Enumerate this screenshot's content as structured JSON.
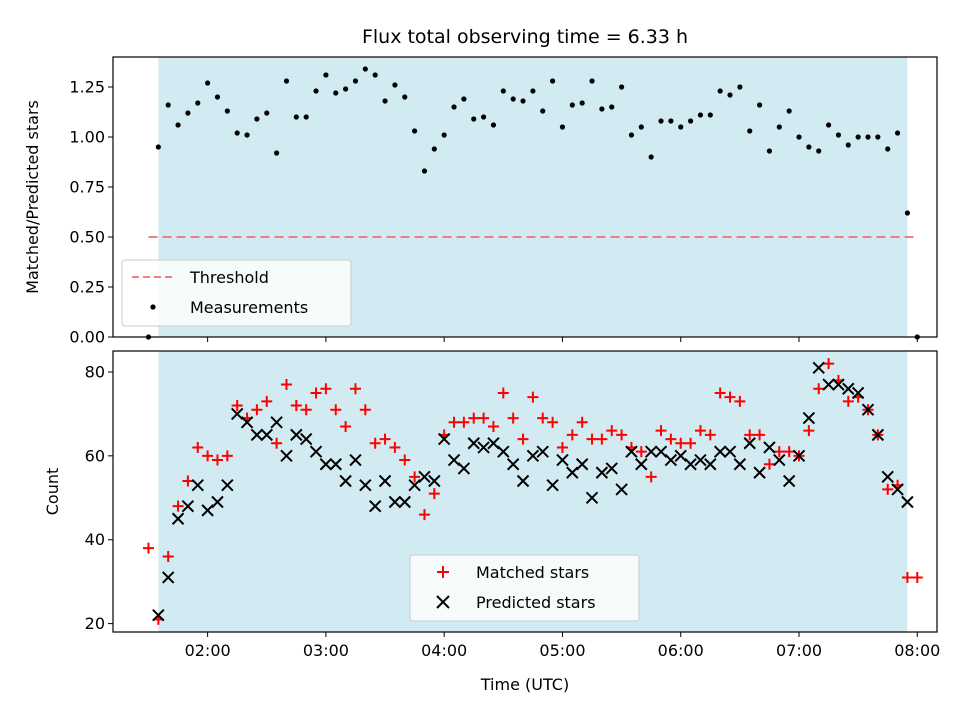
{
  "colors": {
    "shade": "#add8e6",
    "threshold": "#f08080",
    "measurement": "#000000",
    "matched": "#ff0000",
    "predicted": "#000000"
  },
  "chart_data": [
    {
      "type": "scatter",
      "title": "Flux total observing time = 6.33 h",
      "xlabel": "",
      "ylabel": "Matched/Predicted stars",
      "xlim": [
        "01:12",
        "08:10"
      ],
      "ylim": [
        0,
        1.4
      ],
      "yticks": [
        "0.00",
        "0.25",
        "0.50",
        "0.75",
        "1.00",
        "1.25"
      ],
      "shaded_span": [
        "01:35",
        "07:55"
      ],
      "legend": {
        "position": "lower-left",
        "entries": [
          "Threshold",
          "Measurements"
        ]
      },
      "threshold": {
        "name": "Threshold",
        "y": 0.5,
        "x_range": [
          "01:30",
          "08:00"
        ],
        "style": "dashed"
      },
      "series": [
        {
          "name": "Measurements",
          "x": [
            "01:30",
            "01:35",
            "01:40",
            "01:45",
            "01:50",
            "01:55",
            "02:00",
            "02:05",
            "02:10",
            "02:15",
            "02:20",
            "02:25",
            "02:30",
            "02:35",
            "02:40",
            "02:45",
            "02:50",
            "02:55",
            "03:00",
            "03:05",
            "03:10",
            "03:15",
            "03:20",
            "03:25",
            "03:30",
            "03:35",
            "03:40",
            "03:45",
            "03:50",
            "03:55",
            "04:00",
            "04:05",
            "04:10",
            "04:15",
            "04:20",
            "04:25",
            "04:30",
            "04:35",
            "04:40",
            "04:45",
            "04:50",
            "04:55",
            "05:00",
            "05:05",
            "05:10",
            "05:15",
            "05:20",
            "05:25",
            "05:30",
            "05:35",
            "05:40",
            "05:45",
            "05:50",
            "05:55",
            "06:00",
            "06:05",
            "06:10",
            "06:15",
            "06:20",
            "06:25",
            "06:30",
            "06:35",
            "06:40",
            "06:45",
            "06:50",
            "06:55",
            "07:00",
            "07:05",
            "07:10",
            "07:15",
            "07:20",
            "07:25",
            "07:30",
            "07:35",
            "07:40",
            "07:45",
            "07:50",
            "07:55",
            "08:00"
          ],
          "y": [
            0.0,
            0.95,
            1.16,
            1.06,
            1.12,
            1.17,
            1.27,
            1.2,
            1.13,
            1.02,
            1.01,
            1.09,
            1.12,
            0.92,
            1.28,
            1.1,
            1.1,
            1.23,
            1.31,
            1.22,
            1.24,
            1.28,
            1.34,
            1.31,
            1.18,
            1.26,
            1.2,
            1.03,
            0.83,
            0.94,
            1.01,
            1.15,
            1.19,
            1.09,
            1.1,
            1.06,
            1.23,
            1.19,
            1.18,
            1.23,
            1.13,
            1.28,
            1.05,
            1.16,
            1.17,
            1.28,
            1.14,
            1.15,
            1.25,
            1.01,
            1.05,
            0.9,
            1.08,
            1.08,
            1.05,
            1.08,
            1.11,
            1.11,
            1.23,
            1.21,
            1.25,
            1.03,
            1.16,
            0.93,
            1.05,
            1.13,
            1.0,
            0.95,
            0.93,
            1.06,
            1.01,
            0.96,
            1.0,
            1.0,
            1.0,
            0.94,
            1.02,
            0.62,
            0.0
          ]
        }
      ]
    },
    {
      "type": "scatter",
      "title": "",
      "xlabel": "Time (UTC)",
      "ylabel": "Count",
      "xlim": [
        "01:12",
        "08:10"
      ],
      "ylim": [
        18,
        85
      ],
      "xticks": [
        "02:00",
        "03:00",
        "04:00",
        "05:00",
        "06:00",
        "07:00",
        "08:00"
      ],
      "yticks": [
        "20",
        "40",
        "60",
        "80"
      ],
      "shaded_span": [
        "01:35",
        "07:55"
      ],
      "legend": {
        "position": "lower-center",
        "entries": [
          "Matched stars",
          "Predicted stars"
        ]
      },
      "series": [
        {
          "name": "Matched stars",
          "marker": "+",
          "x": [
            "01:30",
            "01:35",
            "01:40",
            "01:45",
            "01:50",
            "01:55",
            "02:00",
            "02:05",
            "02:10",
            "02:15",
            "02:20",
            "02:25",
            "02:30",
            "02:35",
            "02:40",
            "02:45",
            "02:50",
            "02:55",
            "03:00",
            "03:05",
            "03:10",
            "03:15",
            "03:20",
            "03:25",
            "03:30",
            "03:35",
            "03:40",
            "03:45",
            "03:50",
            "03:55",
            "04:00",
            "04:05",
            "04:10",
            "04:15",
            "04:20",
            "04:25",
            "04:30",
            "04:35",
            "04:40",
            "04:45",
            "04:50",
            "04:55",
            "05:00",
            "05:05",
            "05:10",
            "05:15",
            "05:20",
            "05:25",
            "05:30",
            "05:35",
            "05:40",
            "05:45",
            "05:50",
            "05:55",
            "06:00",
            "06:05",
            "06:10",
            "06:15",
            "06:20",
            "06:25",
            "06:30",
            "06:35",
            "06:40",
            "06:45",
            "06:50",
            "06:55",
            "07:00",
            "07:05",
            "07:10",
            "07:15",
            "07:20",
            "07:25",
            "07:30",
            "07:35",
            "07:40",
            "07:45",
            "07:50",
            "07:55",
            "08:00"
          ],
          "y": [
            38,
            21,
            36,
            48,
            54,
            62,
            60,
            59,
            60,
            72,
            69,
            71,
            73,
            63,
            77,
            72,
            71,
            75,
            76,
            71,
            67,
            76,
            71,
            63,
            64,
            62,
            59,
            55,
            46,
            51,
            65,
            68,
            68,
            69,
            69,
            67,
            75,
            69,
            64,
            74,
            69,
            68,
            62,
            65,
            68,
            64,
            64,
            66,
            65,
            62,
            61,
            55,
            66,
            64,
            63,
            63,
            66,
            65,
            75,
            74,
            73,
            65,
            65,
            58,
            61,
            61,
            60,
            66,
            76,
            82,
            78,
            73,
            74,
            71,
            65,
            52,
            53,
            31,
            31
          ]
        },
        {
          "name": "Predicted stars",
          "marker": "x",
          "x": [
            "01:35",
            "01:40",
            "01:45",
            "01:50",
            "01:55",
            "02:00",
            "02:05",
            "02:10",
            "02:15",
            "02:20",
            "02:25",
            "02:30",
            "02:35",
            "02:40",
            "02:45",
            "02:50",
            "02:55",
            "03:00",
            "03:05",
            "03:10",
            "03:15",
            "03:20",
            "03:25",
            "03:30",
            "03:35",
            "03:40",
            "03:45",
            "03:50",
            "03:55",
            "04:00",
            "04:05",
            "04:10",
            "04:15",
            "04:20",
            "04:25",
            "04:30",
            "04:35",
            "04:40",
            "04:45",
            "04:50",
            "04:55",
            "05:00",
            "05:05",
            "05:10",
            "05:15",
            "05:20",
            "05:25",
            "05:30",
            "05:35",
            "05:40",
            "05:45",
            "05:50",
            "05:55",
            "06:00",
            "06:05",
            "06:10",
            "06:15",
            "06:20",
            "06:25",
            "06:30",
            "06:35",
            "06:40",
            "06:45",
            "06:50",
            "06:55",
            "07:00",
            "07:05",
            "07:10",
            "07:15",
            "07:20",
            "07:25",
            "07:30",
            "07:35",
            "07:40",
            "07:45",
            "07:50",
            "07:55"
          ],
          "y": [
            22,
            31,
            45,
            48,
            53,
            47,
            49,
            53,
            70,
            68,
            65,
            65,
            68,
            60,
            65,
            64,
            61,
            58,
            58,
            54,
            59,
            53,
            48,
            54,
            49,
            49,
            53,
            55,
            54,
            64,
            59,
            57,
            63,
            62,
            63,
            61,
            58,
            54,
            60,
            61,
            53,
            59,
            56,
            58,
            50,
            56,
            57,
            52,
            61,
            58,
            61,
            61,
            59,
            60,
            58,
            59,
            58,
            61,
            61,
            58,
            63,
            56,
            62,
            59,
            54,
            60,
            69,
            81,
            77,
            77,
            76,
            75,
            71,
            65,
            55,
            52,
            49
          ]
        }
      ]
    }
  ]
}
